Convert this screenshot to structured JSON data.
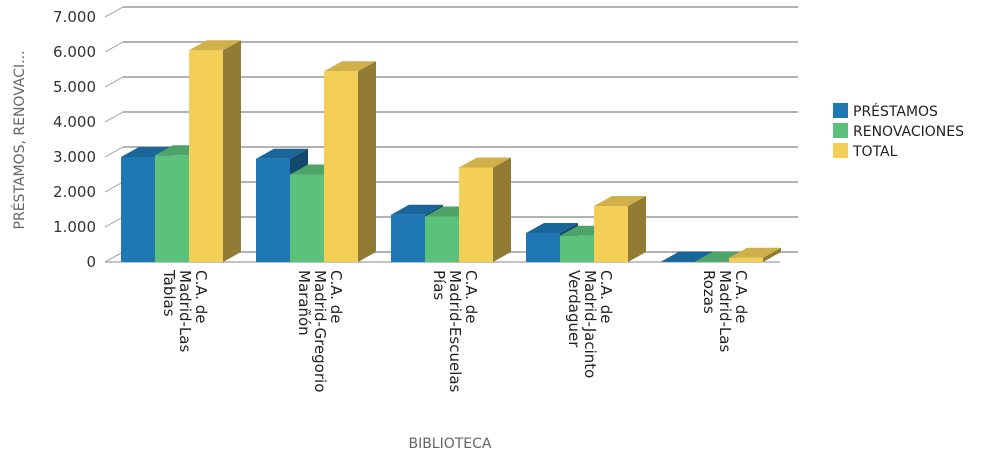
{
  "chart_data": {
    "type": "bar",
    "style": "3d-clustered",
    "xlabel": "BIBLIOTECA",
    "ylabel": "PRÉSTAMOS, RENOVACI...",
    "ylim": [
      0,
      7000
    ],
    "yticks": [
      {
        "value": 0,
        "label": "0"
      },
      {
        "value": 1000,
        "label": "1.000"
      },
      {
        "value": 2000,
        "label": "2.000"
      },
      {
        "value": 3000,
        "label": "3.000"
      },
      {
        "value": 4000,
        "label": "4.000"
      },
      {
        "value": 5000,
        "label": "5.000"
      },
      {
        "value": 6000,
        "label": "6.000"
      },
      {
        "value": 7000,
        "label": "7.000"
      }
    ],
    "grid": true,
    "legend_position": "right",
    "categories": [
      [
        "C.A. de",
        "Madrid-Las",
        "Tablas"
      ],
      [
        "C.A. de",
        "Madrid-Gregorio",
        "Marañón"
      ],
      [
        "C.A. de",
        "Madrid-Escuelas",
        "Pías"
      ],
      [
        "C.A. de",
        "Madrid-Jacinto",
        "Verdaguer"
      ],
      [
        "C.A. de",
        "Madrid-Las",
        "Rozas"
      ]
    ],
    "series": [
      {
        "name": "PRÉSTAMOS",
        "color": "#1f77b4",
        "values": [
          3000,
          2950,
          1350,
          830,
          10
        ]
      },
      {
        "name": "RENOVACIONES",
        "color": "#5cc17a",
        "values": [
          3050,
          2500,
          1300,
          750,
          10
        ]
      },
      {
        "name": "TOTAL",
        "color": "#f4cf57",
        "values": [
          6050,
          5450,
          2700,
          1600,
          120
        ]
      }
    ]
  }
}
